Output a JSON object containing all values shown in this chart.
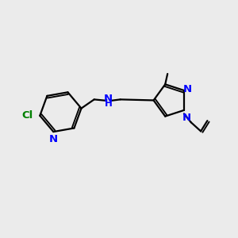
{
  "background_color": "#ebebeb",
  "bond_color": "#000000",
  "n_color": "#0000ff",
  "cl_color": "#008000",
  "line_width": 1.6,
  "font_size": 9.5,
  "figsize": [
    3.0,
    3.0
  ],
  "dpi": 100,
  "xlim": [
    0,
    10
  ],
  "ylim": [
    0,
    10
  ]
}
